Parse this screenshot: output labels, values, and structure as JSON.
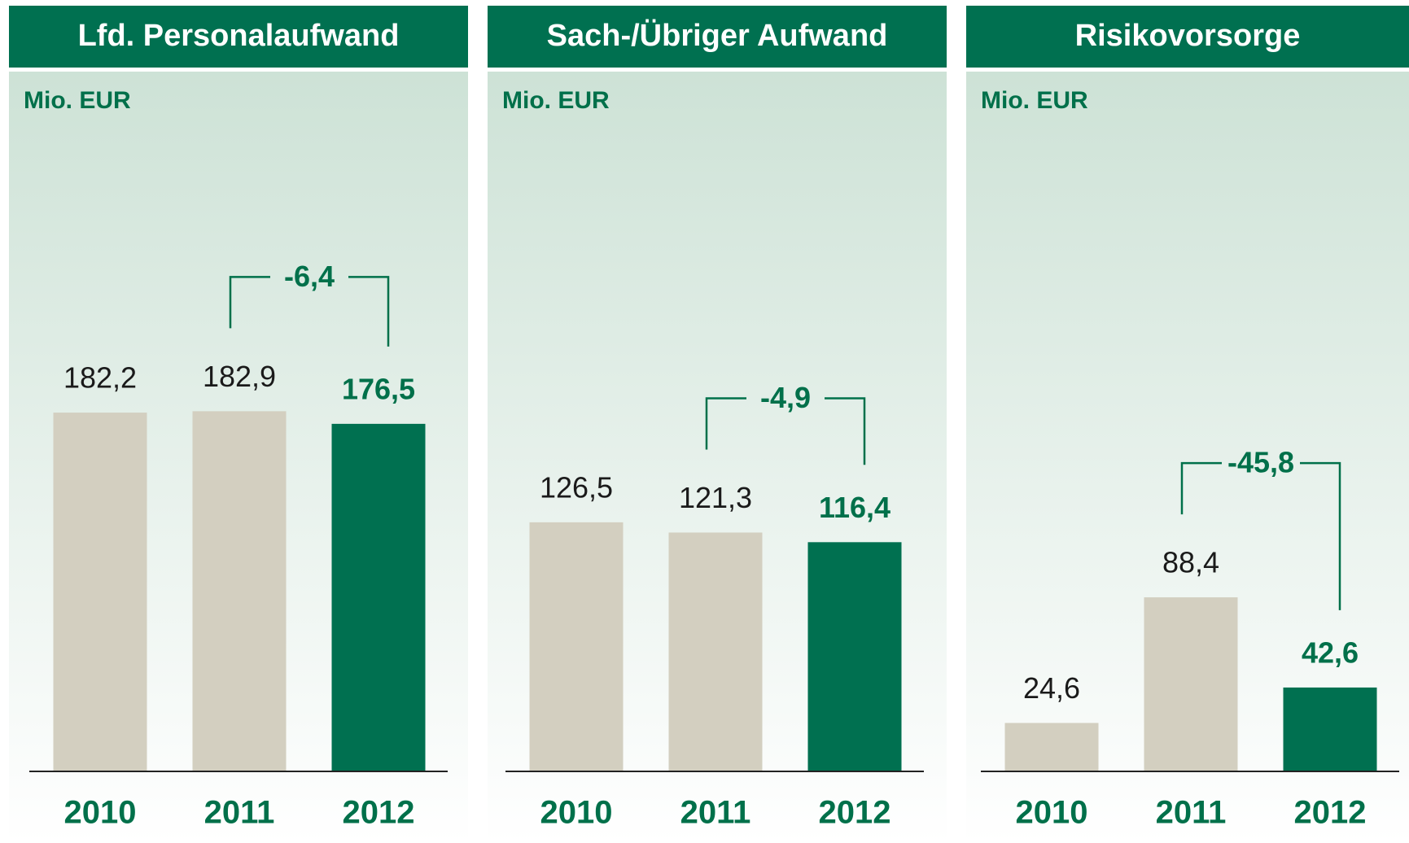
{
  "chart_data": [
    {
      "type": "bar",
      "title": "Lfd. Personalaufwand",
      "unit_label": "Mio. EUR",
      "categories": [
        "2010",
        "2011",
        "2012"
      ],
      "values": [
        182.2,
        182.9,
        176.5
      ],
      "value_labels": [
        "182,2",
        "182,9",
        "176,5"
      ],
      "colors": [
        "#d3cfc0",
        "#d3cfc0",
        "#007050"
      ],
      "label_colors": [
        "#1a1a1a",
        "#1a1a1a",
        "#00704a"
      ],
      "ylim": [
        0,
        350
      ],
      "annotation": "-6,4"
    },
    {
      "type": "bar",
      "title": "Sach-/Übriger Aufwand",
      "unit_label": "Mio. EUR",
      "categories": [
        "2010",
        "2011",
        "2012"
      ],
      "values": [
        126.5,
        121.3,
        116.4
      ],
      "value_labels": [
        "126,5",
        "121,3",
        "116,4"
      ],
      "colors": [
        "#d3cfc0",
        "#d3cfc0",
        "#007050"
      ],
      "label_colors": [
        "#1a1a1a",
        "#1a1a1a",
        "#00704a"
      ],
      "ylim": [
        0,
        350
      ],
      "annotation": "-4,9"
    },
    {
      "type": "bar",
      "title": "Risikovorsorge",
      "unit_label": "Mio. EUR",
      "categories": [
        "2010",
        "2011",
        "2012"
      ],
      "values": [
        24.6,
        88.4,
        42.6
      ],
      "value_labels": [
        "24,6",
        "88,4",
        "42,6"
      ],
      "colors": [
        "#d3cfc0",
        "#d3cfc0",
        "#007050"
      ],
      "label_colors": [
        "#1a1a1a",
        "#1a1a1a",
        "#00704a"
      ],
      "ylim": [
        0,
        350
      ],
      "annotation": "-45,8"
    }
  ]
}
